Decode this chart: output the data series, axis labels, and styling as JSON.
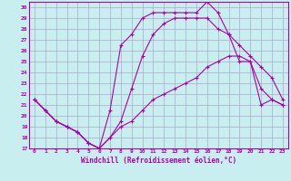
{
  "xlabel": "Windchill (Refroidissement éolien,°C)",
  "background_color": "#c8eef0",
  "grid_color": "#aaaacc",
  "line_color": "#aa00aa",
  "xlim": [
    -0.5,
    23.5
  ],
  "ylim": [
    17,
    30.5
  ],
  "xticks": [
    0,
    1,
    2,
    3,
    4,
    5,
    6,
    7,
    8,
    9,
    10,
    11,
    12,
    13,
    14,
    15,
    16,
    17,
    18,
    19,
    20,
    21,
    22,
    23
  ],
  "yticks": [
    17,
    18,
    19,
    20,
    21,
    22,
    23,
    24,
    25,
    26,
    27,
    28,
    29,
    30
  ],
  "lines": [
    {
      "x": [
        0,
        1,
        2,
        3,
        4,
        5,
        6,
        7,
        8,
        9,
        10,
        11,
        12,
        13,
        14,
        15,
        16,
        17,
        18,
        19,
        20,
        21,
        22,
        23
      ],
      "y": [
        21.5,
        20.5,
        19.5,
        19.0,
        18.5,
        17.5,
        17.0,
        20.5,
        26.5,
        27.5,
        29.0,
        29.5,
        29.5,
        29.5,
        29.5,
        29.5,
        30.5,
        29.5,
        27.5,
        25.0,
        25.0,
        21.0,
        21.5,
        21.0
      ]
    },
    {
      "x": [
        0,
        1,
        2,
        3,
        4,
        5,
        6,
        7,
        8,
        9,
        10,
        11,
        12,
        13,
        14,
        15,
        16,
        17,
        18,
        19,
        20,
        21,
        22,
        23
      ],
      "y": [
        21.5,
        20.5,
        19.5,
        19.0,
        18.5,
        17.5,
        17.0,
        18.0,
        19.5,
        22.5,
        25.5,
        27.5,
        28.5,
        29.0,
        29.0,
        29.0,
        29.0,
        28.0,
        27.5,
        26.5,
        25.5,
        24.5,
        23.5,
        21.5
      ]
    },
    {
      "x": [
        0,
        1,
        2,
        3,
        4,
        5,
        6,
        7,
        8,
        9,
        10,
        11,
        12,
        13,
        14,
        15,
        16,
        17,
        18,
        19,
        20,
        21,
        22,
        23
      ],
      "y": [
        21.5,
        20.5,
        19.5,
        19.0,
        18.5,
        17.5,
        17.0,
        18.0,
        19.0,
        19.5,
        20.5,
        21.5,
        22.0,
        22.5,
        23.0,
        23.5,
        24.5,
        25.0,
        25.5,
        25.5,
        25.0,
        22.5,
        21.5,
        21.0
      ]
    }
  ]
}
